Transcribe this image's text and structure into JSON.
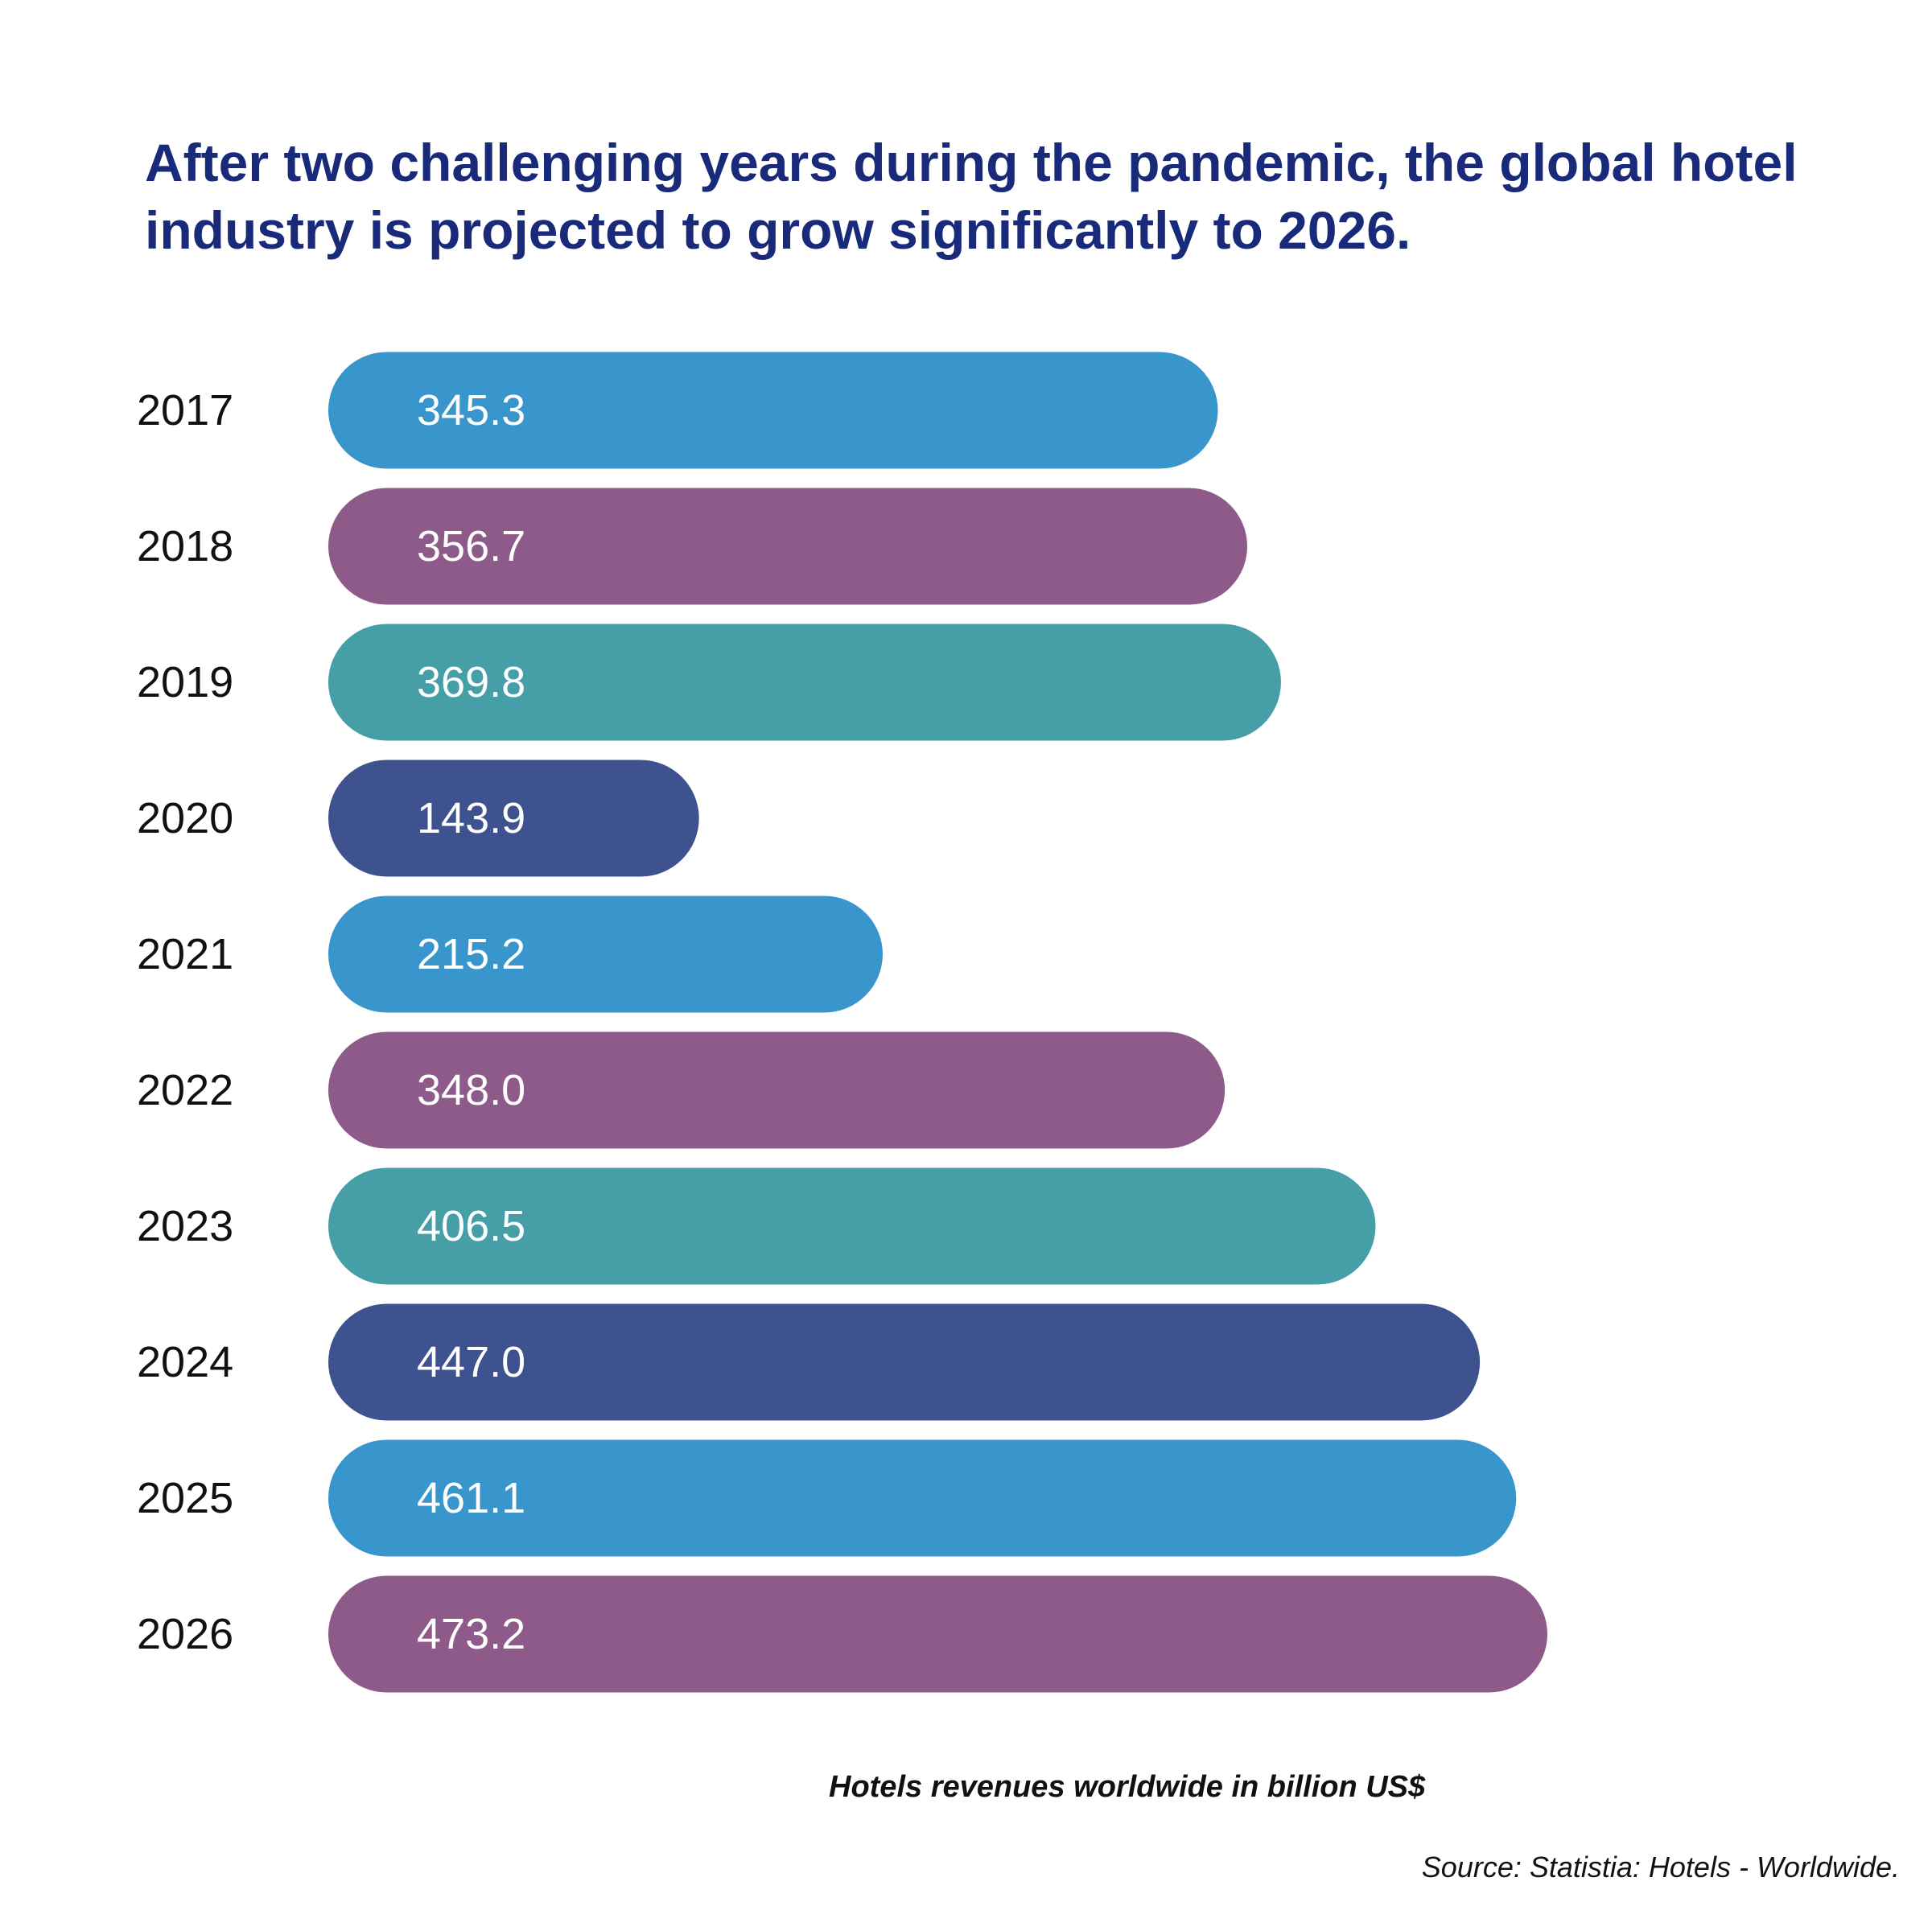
{
  "chart_data": {
    "type": "bar",
    "orientation": "horizontal",
    "title": "After two challenging years during the pandemic, the global hotel industry is projected to grow significantly to 2026.",
    "categories": [
      "2017",
      "2018",
      "2019",
      "2020",
      "2021",
      "2022",
      "2023",
      "2024",
      "2025",
      "2026"
    ],
    "values": [
      345.3,
      356.7,
      369.8,
      143.9,
      215.2,
      348.0,
      406.5,
      447.0,
      461.1,
      473.2
    ],
    "value_labels": [
      "345.3",
      "356.7",
      "369.8",
      "143.9",
      "215.2",
      "348.0",
      "406.5",
      "447.0",
      "461.1",
      "473.2"
    ],
    "colors": [
      "#3896cd",
      "#8d5a8a",
      "#469fa7",
      "#3d528f",
      "#3896cd",
      "#8d5a8a",
      "#469fa7",
      "#3d528f",
      "#3896cd",
      "#8d5a8a"
    ],
    "caption": "Hotels revenues worldwide in billion US$",
    "source": "Source: Statistia: Hotels - Worldwide.",
    "xlim": [
      0,
      473.2
    ],
    "grid": false,
    "legend": "none"
  },
  "colors": {
    "title": "#1a2a7a",
    "text": "#111111",
    "bar_label": "#ffffff"
  }
}
